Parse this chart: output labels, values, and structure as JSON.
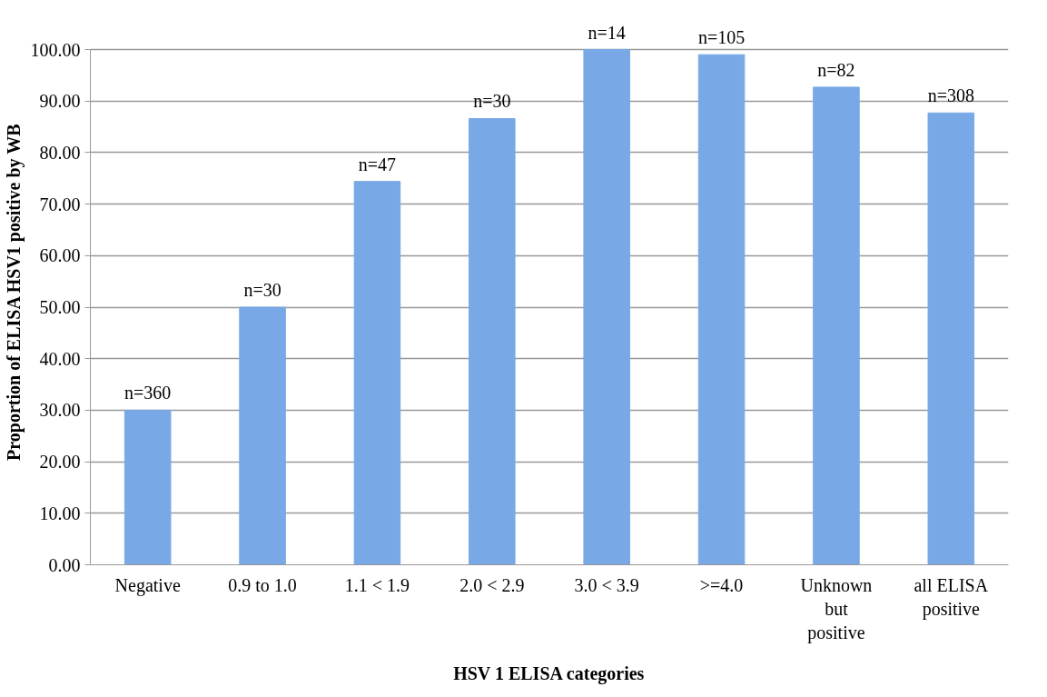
{
  "chart_data": {
    "type": "bar",
    "xlabel": "HSV 1 ELISA categories",
    "ylabel": "Proportion of ELISA HSV1 positive by WB",
    "categories": [
      "Negative",
      "0.9 to 1.0",
      "1.1 < 1.9",
      "2.0 < 2.9",
      "3.0 < 3.9",
      ">=4.0",
      "Unknown but positive",
      "all ELISA positive"
    ],
    "values": [
      30.0,
      50.0,
      74.4,
      86.6,
      100.0,
      99.0,
      92.7,
      87.7
    ],
    "annotations": [
      {
        "text": "n=360",
        "x": "Negative",
        "y": 30.0
      },
      {
        "text": "n=30",
        "x": "0.9 to 1.0",
        "y": 50.0
      },
      {
        "text": "n=47",
        "x": "1.1 < 1.9",
        "y": 74.4
      },
      {
        "text": "n=30",
        "x": "2.0 < 2.9",
        "y": 86.6
      },
      {
        "text": "n=14",
        "x": "3.0 < 3.9",
        "y": 100.0
      },
      {
        "text": "n=105",
        "x": ">=4.0",
        "y": 99.0
      },
      {
        "text": "n=82",
        "x": "Unknown but positive",
        "y": 92.7
      },
      {
        "text": "n=308",
        "x": "all ELISA positive",
        "y": 87.7
      }
    ],
    "color": "#78a9e6",
    "ylim": [
      0,
      100
    ],
    "yticks": [
      {
        "value": 0,
        "label": "0.00"
      },
      {
        "value": 10,
        "label": "10.00"
      },
      {
        "value": 20,
        "label": "20.00"
      },
      {
        "value": 30,
        "label": "30.00"
      },
      {
        "value": 40,
        "label": "40.00"
      },
      {
        "value": 50,
        "label": "50.00"
      },
      {
        "value": 60,
        "label": "60.00"
      },
      {
        "value": 70,
        "label": "70.00"
      },
      {
        "value": 80,
        "label": "80.00"
      },
      {
        "value": 90,
        "label": "90.00"
      },
      {
        "value": 100,
        "label": "100.00"
      }
    ],
    "grid": "y"
  }
}
